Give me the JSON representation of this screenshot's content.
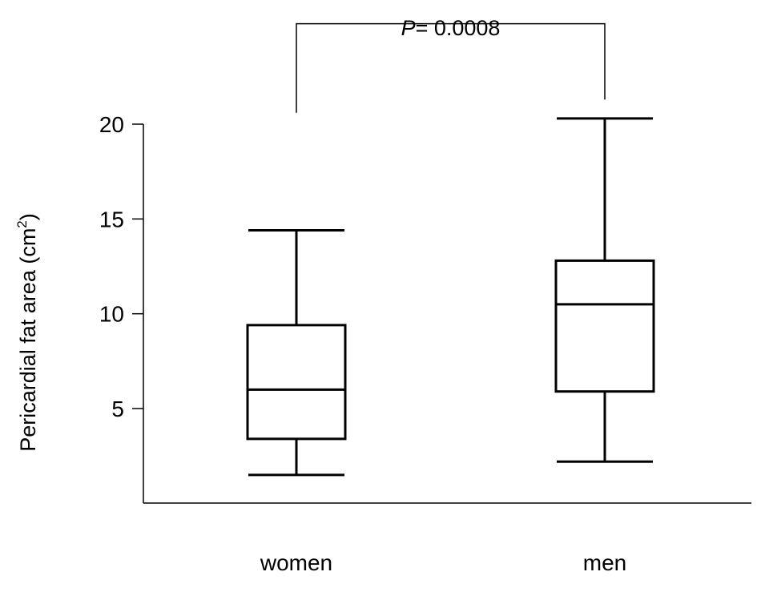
{
  "chart_data": {
    "type": "box",
    "title": "",
    "ylabel": "Pericardial fat area (cm",
    "ylabel_sup": "2",
    "ylabel_close": ")",
    "xlabel": "",
    "ylim": [
      0,
      22
    ],
    "yticks": [
      5,
      10,
      15,
      20
    ],
    "ytick_labels": [
      "5",
      "10",
      "15",
      "20"
    ],
    "categories": [
      "women",
      "men"
    ],
    "boxes": [
      {
        "category": "women",
        "whisker_low": 1.5,
        "q1": 3.4,
        "median": 6.0,
        "q3": 9.4,
        "whisker_high": 14.4
      },
      {
        "category": "men",
        "whisker_low": 2.2,
        "q1": 5.9,
        "median": 10.5,
        "q3": 12.8,
        "whisker_high": 20.3
      }
    ],
    "annotation": {
      "p_symbol": "P",
      "p_text": "= 0.0008",
      "bracket_left_y": 20.6,
      "bracket_right_y": 21.3,
      "bracket_top_y": 25.3
    },
    "grid": false,
    "legend": "none"
  }
}
